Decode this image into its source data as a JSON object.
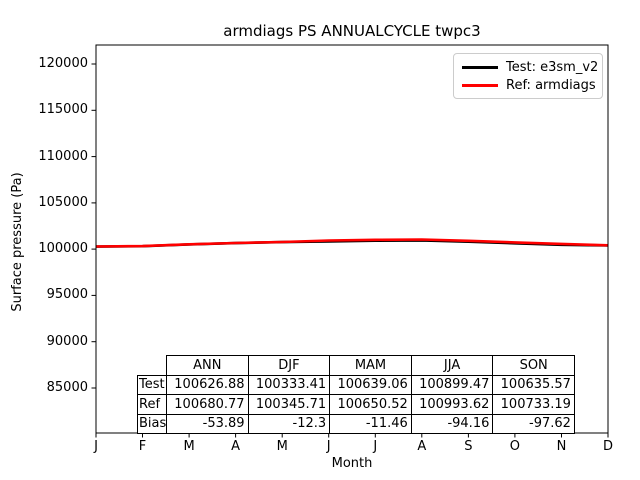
{
  "window": {
    "title": "armdiags PS ANNUALCYCLE twpc3"
  },
  "axes": {
    "xlabel": "Month",
    "ylabel": "Surface pressure (Pa)"
  },
  "legend": {
    "items": [
      {
        "label": "Test: e3sm_v2",
        "color": "#000000"
      },
      {
        "label": "Ref: armdiags",
        "color": "#ff0000"
      }
    ]
  },
  "chart_data": {
    "type": "line",
    "title": "armdiags PS ANNUALCYCLE twpc3",
    "xlabel": "Month",
    "ylabel": "Surface pressure (Pa)",
    "x_tick_labels": [
      "J",
      "F",
      "M",
      "A",
      "M",
      "J",
      "J",
      "A",
      "S",
      "O",
      "N",
      "D"
    ],
    "y_tick_labels": [
      "120000",
      "115000",
      "110000",
      "105000",
      "100000",
      "95000",
      "90000",
      "85000"
    ],
    "y_ticks": [
      120000,
      115000,
      110000,
      105000,
      100000,
      95000,
      90000,
      85000
    ],
    "xlim": [
      1,
      12
    ],
    "ylim": [
      80000,
      122000
    ],
    "grid": false,
    "legend_position": "upper right",
    "x": [
      1,
      2,
      3,
      4,
      5,
      6,
      7,
      8,
      9,
      10,
      11,
      12
    ],
    "series": [
      {
        "name": "Test: e3sm_v2",
        "color": "#000000",
        "values": [
          100278,
          100318,
          100508,
          100648,
          100758,
          100836,
          100916,
          100946,
          100802,
          100632,
          100472,
          100408
        ]
      },
      {
        "name": "Ref: armdiags",
        "color": "#ff0000",
        "values": [
          100290,
          100330,
          100520,
          100660,
          100770,
          100930,
          101010,
          101040,
          100900,
          100730,
          100570,
          100420
        ]
      }
    ],
    "stats_table": {
      "col_headers": [
        "ANN",
        "DJF",
        "MAM",
        "JJA",
        "SON"
      ],
      "rows": [
        {
          "label": "Test",
          "values": [
            "100626.88",
            "100333.41",
            "100639.06",
            "100899.47",
            "100635.57"
          ]
        },
        {
          "label": "Ref",
          "values": [
            "100680.77",
            "100345.71",
            "100650.52",
            "100993.62",
            "100733.19"
          ]
        },
        {
          "label": "Bias",
          "values": [
            "-53.89",
            "-12.3",
            "-11.46",
            "-94.16",
            "-97.62"
          ]
        }
      ]
    }
  }
}
